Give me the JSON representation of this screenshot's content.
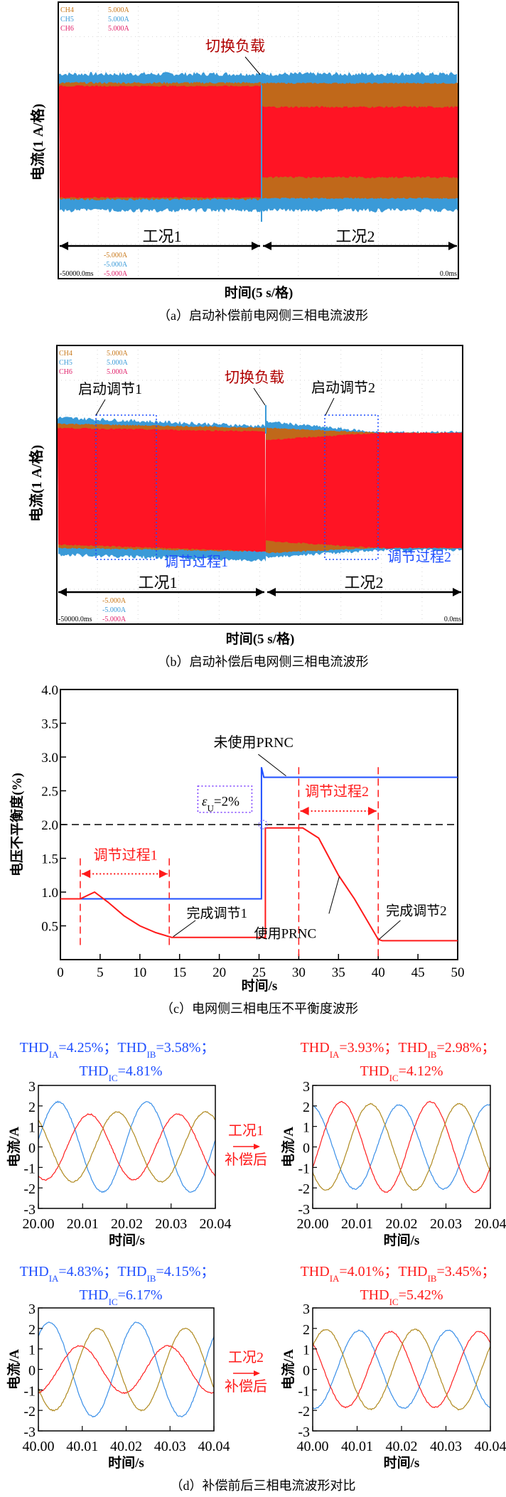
{
  "panel_a": {
    "caption": "（a）启动补偿前电网侧三相电流波形",
    "ylabel": "电流(1 A/格)",
    "xlabel": "时间(5 s/格)",
    "channels": [
      {
        "name": "CH4",
        "scale": "5.000A",
        "offset": "-5.000A",
        "color": "#c8781a"
      },
      {
        "name": "CH5",
        "scale": "5.000A",
        "offset": "-5.000A",
        "color": "#3a9ad8"
      },
      {
        "name": "CH6",
        "scale": "5.000A",
        "offset": "-5.000A",
        "color": "#e0206a"
      }
    ],
    "time_start": "-50000.0ms",
    "time_end": "0.0ms",
    "switch_label": "切换负载",
    "case1": "工况1",
    "case2": "工况2"
  },
  "panel_b": {
    "caption": "（b）启动补偿后电网侧三相电流波形",
    "ylabel": "电流(1 A/格)",
    "xlabel": "时间(5 s/格)",
    "channels": [
      {
        "name": "CH4",
        "scale": "5.000A",
        "offset": "-5.000A",
        "color": "#c8781a"
      },
      {
        "name": "CH5",
        "scale": "5.000A",
        "offset": "-5.000A",
        "color": "#3a9ad8"
      },
      {
        "name": "CH6",
        "scale": "5.000A",
        "offset": "-5.000A",
        "color": "#e0206a"
      }
    ],
    "time_start": "-50000.0ms",
    "time_end": "0.0ms",
    "switch_label": "切换负载",
    "start1": "启动调节1",
    "start2": "启动调节2",
    "process1": "调节过程1",
    "process2": "调节过程2",
    "case1": "工况1",
    "case2": "工况2"
  },
  "chart_data": [
    {
      "type": "line",
      "caption": "（c）电网侧三相电压不平衡度波形",
      "xlabel": "时间/s",
      "ylabel": "电压不平衡度(%)",
      "xlim": [
        0,
        50
      ],
      "ylim": [
        0,
        4
      ],
      "xticks": [
        "0",
        "5",
        "10",
        "15",
        "20",
        "25",
        "30",
        "35",
        "40",
        "45",
        "50"
      ],
      "yticks": [
        "0.5",
        "1.0",
        "1.5",
        "2.0",
        "2.5",
        "3.0",
        "3.5",
        "4.0"
      ],
      "threshold": {
        "value": 2.0,
        "label_main": "ε",
        "label_sub": "U",
        "label_rest": "=2%"
      },
      "series": [
        {
          "name": "未使用PRNC",
          "color": "#1f4fff",
          "x": [
            0,
            25.3,
            25.3,
            25.6,
            50
          ],
          "y": [
            0.9,
            0.9,
            2.85,
            2.7,
            2.7
          ]
        },
        {
          "name": "使用PRNC",
          "color": "#ff1a1a",
          "x": [
            0,
            2.5,
            4.3,
            6,
            8,
            10,
            12,
            14,
            25.8,
            25.8,
            30.5,
            32.5,
            35,
            37,
            40,
            40.5,
            50
          ],
          "y": [
            0.9,
            0.9,
            1.0,
            0.85,
            0.65,
            0.5,
            0.4,
            0.33,
            0.33,
            1.95,
            1.95,
            1.8,
            1.25,
            0.9,
            0.3,
            0.28,
            0.28
          ]
        }
      ],
      "annotations": {
        "process1": "调节过程1",
        "process2": "调节过程2",
        "done1": "完成调节1",
        "done2": "完成调节2",
        "markers_s": [
          2.5,
          13.7,
          30,
          40
        ]
      }
    },
    {
      "type": "line",
      "caption": "（d）补偿前后三相电流波形对比",
      "frequency_hz": 50,
      "ylim": [
        -3,
        3
      ],
      "yticks": [
        "-3",
        "-2",
        "-1",
        "0",
        "1",
        "2",
        "3"
      ],
      "ylabel": "电流/A",
      "xlabel": "时间/s",
      "arrow1": {
        "case": "工况1",
        "after": "补偿后"
      },
      "arrow2": {
        "case": "工况2",
        "after": "补偿后"
      },
      "subplots": [
        {
          "xticks": [
            "20.00",
            "20.01",
            "20.02",
            "20.03",
            "20.04"
          ],
          "xlim": [
            20.0,
            20.04
          ],
          "thd_color": "#1f4fff",
          "thd": [
            {
              "m": "THD",
              "s": "IA",
              "v": "=4.25%；"
            },
            {
              "m": "THD",
              "s": "IB",
              "v": "=3.58%；"
            },
            {
              "m": "THD",
              "s": "IC",
              "v": "=4.81%"
            }
          ],
          "series": [
            {
              "color": "#3a8fe8",
              "amplitude": 2.2,
              "peak_time": 20.0045
            },
            {
              "color": "#ff2020",
              "amplitude": 1.6,
              "peak_time": 20.0115
            },
            {
              "color": "#b08a20",
              "amplitude": 1.7,
              "peak_time": 20.0178
            }
          ]
        },
        {
          "xticks": [
            "20.00",
            "20.01",
            "20.02",
            "20.03",
            "20.04"
          ],
          "xlim": [
            20.0,
            20.04
          ],
          "thd_color": "#ff1a1a",
          "thd": [
            {
              "m": "THD",
              "s": "IA",
              "v": "=3.93%；"
            },
            {
              "m": "THD",
              "s": "IB",
              "v": "=2.98%；"
            },
            {
              "m": "THD",
              "s": "IC",
              "v": "=4.12%"
            }
          ],
          "series": [
            {
              "color": "#3a8fe8",
              "amplitude": 2.05,
              "peak_time": 19.9995
            },
            {
              "color": "#ff2020",
              "amplitude": 2.2,
              "peak_time": 20.0065
            },
            {
              "color": "#b08a20",
              "amplitude": 2.1,
              "peak_time": 20.013
            }
          ]
        },
        {
          "xticks": [
            "40.00",
            "40.01",
            "40.02",
            "40.03",
            "40.04"
          ],
          "xlim": [
            40.0,
            40.04
          ],
          "thd_color": "#1f4fff",
          "thd": [
            {
              "m": "THD",
              "s": "IA",
              "v": "=4.83%；"
            },
            {
              "m": "THD",
              "s": "IB",
              "v": "=4.15%；"
            },
            {
              "m": "THD",
              "s": "IC",
              "v": "=6.17%"
            }
          ],
          "series": [
            {
              "color": "#3a8fe8",
              "amplitude": 2.3,
              "peak_time": 40.0025
            },
            {
              "color": "#ff2020",
              "amplitude": 1.15,
              "peak_time": 40.0095
            },
            {
              "color": "#b08a20",
              "amplitude": 2.0,
              "peak_time": 40.0135
            }
          ]
        },
        {
          "xticks": [
            "40.00",
            "40.01",
            "40.02",
            "40.03",
            "40.04"
          ],
          "xlim": [
            40.0,
            40.04
          ],
          "thd_color": "#ff1a1a",
          "thd": [
            {
              "m": "THD",
              "s": "IA",
              "v": "=4.01%；"
            },
            {
              "m": "THD",
              "s": "IB",
              "v": "=3.45%；"
            },
            {
              "m": "THD",
              "s": "IC",
              "v": "=5.42%"
            }
          ],
          "series": [
            {
              "color": "#3a8fe8",
              "amplitude": 1.9,
              "peak_time": 40.0105
            },
            {
              "color": "#ff2020",
              "amplitude": 1.85,
              "peak_time": 40.0175
            },
            {
              "color": "#b08a20",
              "amplitude": 1.95,
              "peak_time": 40.003
            }
          ]
        }
      ]
    }
  ]
}
